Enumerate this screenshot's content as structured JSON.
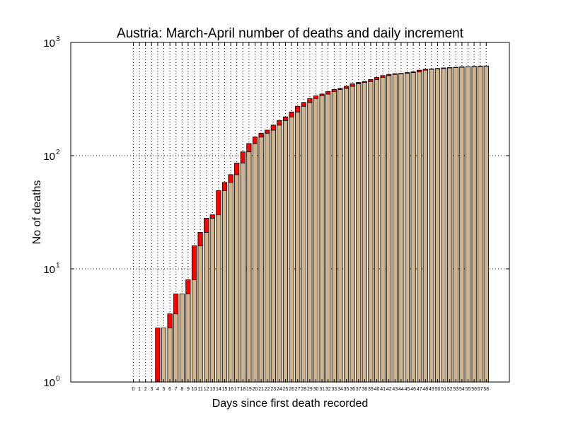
{
  "chart_data": {
    "type": "bar",
    "title": "Austria: March-April number of deaths and daily increment",
    "xlabel": "Days since first death recorded",
    "ylabel": "No of deaths",
    "yscale": "log",
    "ylim": [
      1,
      1000
    ],
    "yticks": [
      {
        "base": "10",
        "exp": "0"
      },
      {
        "base": "10",
        "exp": "1"
      },
      {
        "base": "10",
        "exp": "2"
      },
      {
        "base": "10",
        "exp": "3"
      }
    ],
    "ytick_values": [
      1,
      10,
      100,
      1000
    ],
    "grid": true,
    "x": [
      0,
      1,
      2,
      3,
      4,
      5,
      6,
      7,
      8,
      9,
      10,
      11,
      12,
      13,
      14,
      15,
      16,
      17,
      18,
      19,
      20,
      21,
      22,
      23,
      24,
      25,
      26,
      27,
      28,
      29,
      30,
      31,
      32,
      33,
      34,
      35,
      36,
      37,
      38,
      39,
      40,
      41,
      42,
      43,
      44,
      45,
      46,
      47,
      48,
      49,
      50,
      51,
      52,
      53,
      54,
      55,
      56,
      57,
      58
    ],
    "xticklabels": [
      "0",
      "1",
      "2",
      "3",
      "4",
      "5",
      "6",
      "7",
      "8",
      "9",
      "10",
      "11",
      "12",
      "13",
      "14",
      "15",
      "16",
      "17",
      "18",
      "19",
      "20",
      "21",
      "22",
      "23",
      "24",
      "25",
      "26",
      "27",
      "28",
      "29",
      "30",
      "31",
      "32",
      "33",
      "34",
      "35",
      "36",
      "37",
      "38",
      "39",
      "40",
      "41",
      "42",
      "43",
      "44",
      "45",
      "46",
      "47",
      "48",
      "49",
      "50",
      "51",
      "52",
      "53",
      "54",
      "55",
      "56",
      "57",
      "58"
    ],
    "deaths": [
      0,
      0,
      0,
      0,
      3,
      3,
      4,
      6,
      6,
      8,
      16,
      21,
      28,
      30,
      49,
      58,
      68,
      86,
      108,
      128,
      146,
      158,
      168,
      186,
      204,
      220,
      243,
      273,
      295,
      319,
      337,
      350,
      368,
      384,
      393,
      410,
      431,
      443,
      452,
      470,
      491,
      510,
      522,
      530,
      534,
      542,
      549,
      569,
      580,
      584,
      589,
      596,
      600,
      604,
      609,
      610,
      614,
      618,
      620
    ],
    "colors": {
      "cumulative": "#d2b48c",
      "increment": "#ff0000",
      "outline": "#000000",
      "grid": "#000000",
      "background": "#ffffff"
    }
  }
}
